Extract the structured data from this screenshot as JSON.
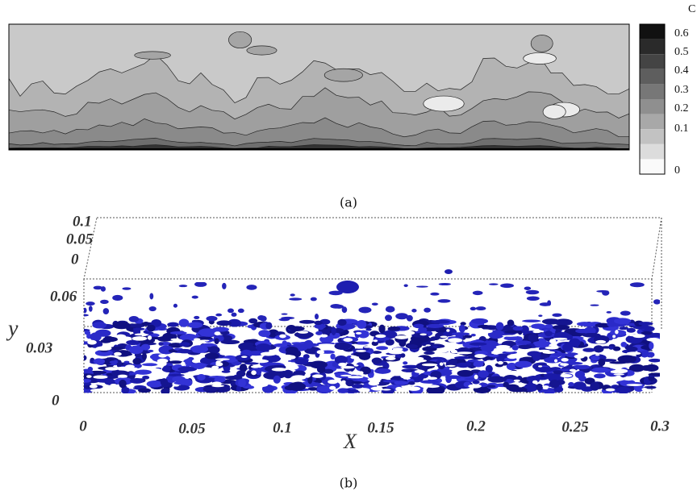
{
  "panel_a": {
    "colorbar_title": "C",
    "colorbar_ticks": [
      "0.6",
      "0.5",
      "0.4",
      "0.3",
      "0.2",
      "0.1",
      "0"
    ],
    "caption": "(a)"
  },
  "panel_b": {
    "y_label": "y",
    "x_label": "X",
    "z_ticks": [
      "0.1",
      "0.05",
      "0"
    ],
    "y_ticks": [
      "0.06",
      "0.03",
      "0"
    ],
    "x_ticks": [
      "0",
      "0.05",
      "0.1",
      "0.15",
      "0.2",
      "0.25",
      "0.3"
    ],
    "caption": "(b)"
  }
}
